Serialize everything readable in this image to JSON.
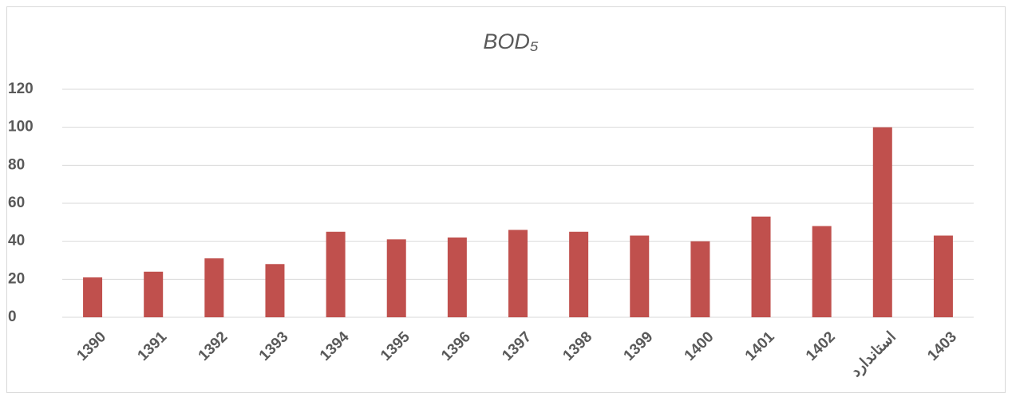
{
  "chart_data": {
    "type": "bar",
    "title": "BOD₅",
    "categories": [
      "1390",
      "1391",
      "1392",
      "1393",
      "1394",
      "1395",
      "1396",
      "1397",
      "1398",
      "1399",
      "1400",
      "1401",
      "1402",
      "استاندارد",
      "1403"
    ],
    "values": [
      21,
      24,
      31,
      28,
      45,
      41,
      42,
      46,
      45,
      43,
      40,
      53,
      48,
      100,
      43
    ],
    "color": "#c0504d",
    "ylim": [
      0,
      120
    ],
    "yticks": [
      0,
      20,
      40,
      60,
      80,
      100,
      120
    ],
    "grid": true
  }
}
